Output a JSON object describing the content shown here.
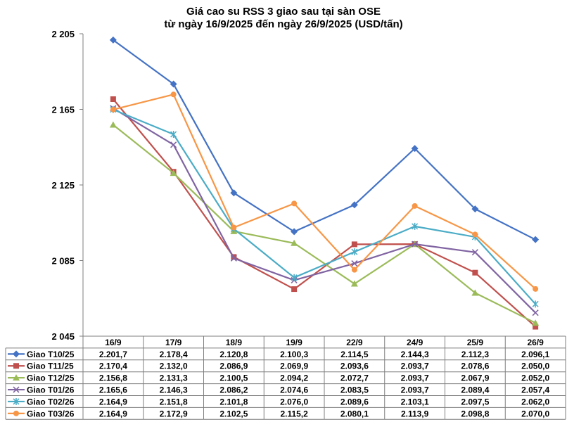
{
  "chart_data": {
    "type": "line",
    "title": "Giá cao su RSS 3 giao sau tại sàn OSE",
    "subtitle": "từ ngày 16/9/2025 đến ngày 26/9/2025 (USD/tấn)",
    "categories": [
      "16/9",
      "17/9",
      "18/9",
      "19/9",
      "22/9",
      "24/9",
      "25/9",
      "26/9"
    ],
    "ylim": [
      2045,
      2205
    ],
    "yticks": [
      2045,
      2085,
      2125,
      2165,
      2205
    ],
    "ytick_labels": [
      "2 045",
      "2 085",
      "2 125",
      "2 165",
      "2 205"
    ],
    "grid": false,
    "legend": "table-below",
    "series": [
      {
        "name": "Giao T10/25",
        "color": "#4472C4",
        "marker": "diamond",
        "values": [
          2201.7,
          2178.4,
          2120.8,
          2100.3,
          2114.5,
          2144.3,
          2112.3,
          2096.1
        ],
        "labels": [
          "2.201,7",
          "2.178,4",
          "2.120,8",
          "2.100,3",
          "2.114,5",
          "2.144,3",
          "2.112,3",
          "2.096,1"
        ]
      },
      {
        "name": "Giao T11/25",
        "color": "#C0504D",
        "marker": "square",
        "values": [
          2170.4,
          2132.0,
          2086.9,
          2069.9,
          2093.6,
          2093.7,
          2078.6,
          2050.0
        ],
        "labels": [
          "2.170,4",
          "2.132,0",
          "2.086,9",
          "2.069,9",
          "2.093,6",
          "2.093,7",
          "2.078,6",
          "2.050,0"
        ]
      },
      {
        "name": "Giao T12/25",
        "color": "#9BBB59",
        "marker": "triangle",
        "values": [
          2156.8,
          2131.3,
          2100.5,
          2094.2,
          2072.7,
          2093.7,
          2067.9,
          2052.0
        ],
        "labels": [
          "2.156,8",
          "2.131,3",
          "2.100,5",
          "2.094,2",
          "2.072,7",
          "2.093,7",
          "2.067,9",
          "2.052,0"
        ]
      },
      {
        "name": "Giao T01/26",
        "color": "#8064A2",
        "marker": "x",
        "values": [
          2165.6,
          2146.3,
          2086.2,
          2074.6,
          2083.5,
          2093.7,
          2089.4,
          2057.4
        ],
        "labels": [
          "2.165,6",
          "2.146,3",
          "2.086,2",
          "2.074,6",
          "2.083,5",
          "2.093,7",
          "2.089,4",
          "2.057,4"
        ]
      },
      {
        "name": "Giao T02/26",
        "color": "#4BACC6",
        "marker": "star",
        "values": [
          2164.9,
          2151.8,
          2101.8,
          2076.0,
          2089.6,
          2103.1,
          2097.5,
          2062.0
        ],
        "labels": [
          "2.164,9",
          "2.151,8",
          "2.101,8",
          "2.076,0",
          "2.089,6",
          "2.103,1",
          "2.097,5",
          "2.062,0"
        ]
      },
      {
        "name": "Giao T03/26",
        "color": "#F79646",
        "marker": "circle",
        "values": [
          2164.9,
          2172.9,
          2102.5,
          2115.2,
          2080.1,
          2113.9,
          2098.8,
          2070.0
        ],
        "labels": [
          "2.164,9",
          "2.172,9",
          "2.102,5",
          "2.115,2",
          "2.080,1",
          "2.113,9",
          "2.098,8",
          "2.070,0"
        ]
      }
    ]
  }
}
